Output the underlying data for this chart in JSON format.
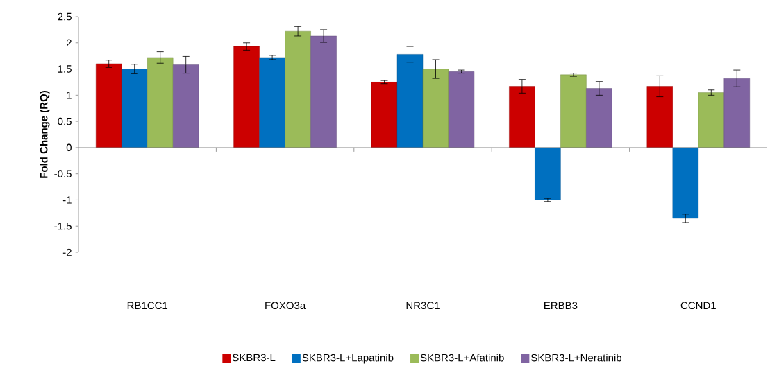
{
  "chart_data": {
    "type": "bar",
    "ylabel": "Fold Change (RQ)",
    "categories": [
      "RB1CC1",
      "FOXO3a",
      "NR3C1",
      "ERBB3",
      "CCND1"
    ],
    "series": [
      {
        "name": "SKBR3-L",
        "color": "#cc0000",
        "values": [
          1.6,
          1.93,
          1.25,
          1.17,
          1.17
        ],
        "errors": [
          0.07,
          0.07,
          0.03,
          0.13,
          0.2
        ]
      },
      {
        "name": "SKBR3-L+Lapatinib",
        "color": "#0070c0",
        "values": [
          1.5,
          1.72,
          1.78,
          -1.0,
          -1.35
        ],
        "errors": [
          0.09,
          0.04,
          0.15,
          0.03,
          0.08
        ]
      },
      {
        "name": "SKBR3-L+Afatinib",
        "color": "#9bbb59",
        "values": [
          1.72,
          2.22,
          1.5,
          1.39,
          1.05
        ],
        "errors": [
          0.11,
          0.09,
          0.18,
          0.03,
          0.05
        ]
      },
      {
        "name": "SKBR3-L+Neratinib",
        "color": "#8064a2",
        "values": [
          1.58,
          2.13,
          1.45,
          1.13,
          1.32
        ],
        "errors": [
          0.16,
          0.12,
          0.03,
          0.13,
          0.16
        ]
      }
    ],
    "ylim": [
      -2,
      2.5
    ],
    "yticks": [
      -2,
      -1.5,
      -1,
      -0.5,
      0,
      0.5,
      1,
      1.5,
      2,
      2.5
    ],
    "legend": "bottom"
  }
}
